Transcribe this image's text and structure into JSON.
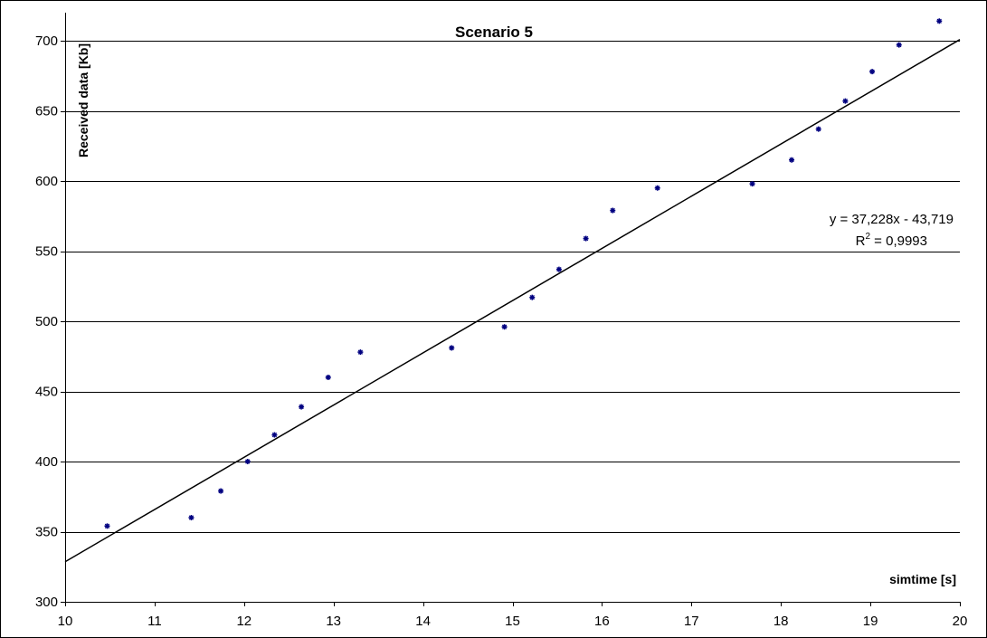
{
  "chart_data": {
    "type": "scatter",
    "title": "Scenario 5",
    "xlabel": "simtime [s]",
    "ylabel": "Received data [Kb]",
    "xlim": [
      10,
      20
    ],
    "ylim": [
      300,
      720
    ],
    "xticks": [
      "10",
      "11",
      "12",
      "13",
      "14",
      "15",
      "16",
      "17",
      "18",
      "19",
      "20"
    ],
    "yticks": [
      "300",
      "350",
      "400",
      "450",
      "500",
      "550",
      "600",
      "650",
      "700"
    ],
    "grid": "horizontal",
    "series": [
      {
        "color": "#000080",
        "x": [
          10.47,
          11.41,
          11.74,
          12.04,
          12.34,
          12.64,
          12.94,
          13.3,
          14.32,
          14.91,
          15.22,
          15.52,
          15.82,
          16.12,
          16.62,
          17.68,
          18.12,
          18.42,
          18.72,
          19.02,
          19.32,
          19.77
        ],
        "y": [
          354,
          360,
          379,
          400,
          419,
          439,
          460,
          478,
          481,
          496,
          517,
          537,
          559,
          579,
          595,
          598,
          615,
          637,
          657,
          678,
          697,
          714
        ]
      }
    ],
    "trendline": {
      "slope": 37.228,
      "intercept": -43.719,
      "equation": "y = 37,228x - 43,719",
      "r2_label": "R",
      "r2_sup": "2",
      "r2_value": " = 0,9993"
    }
  }
}
